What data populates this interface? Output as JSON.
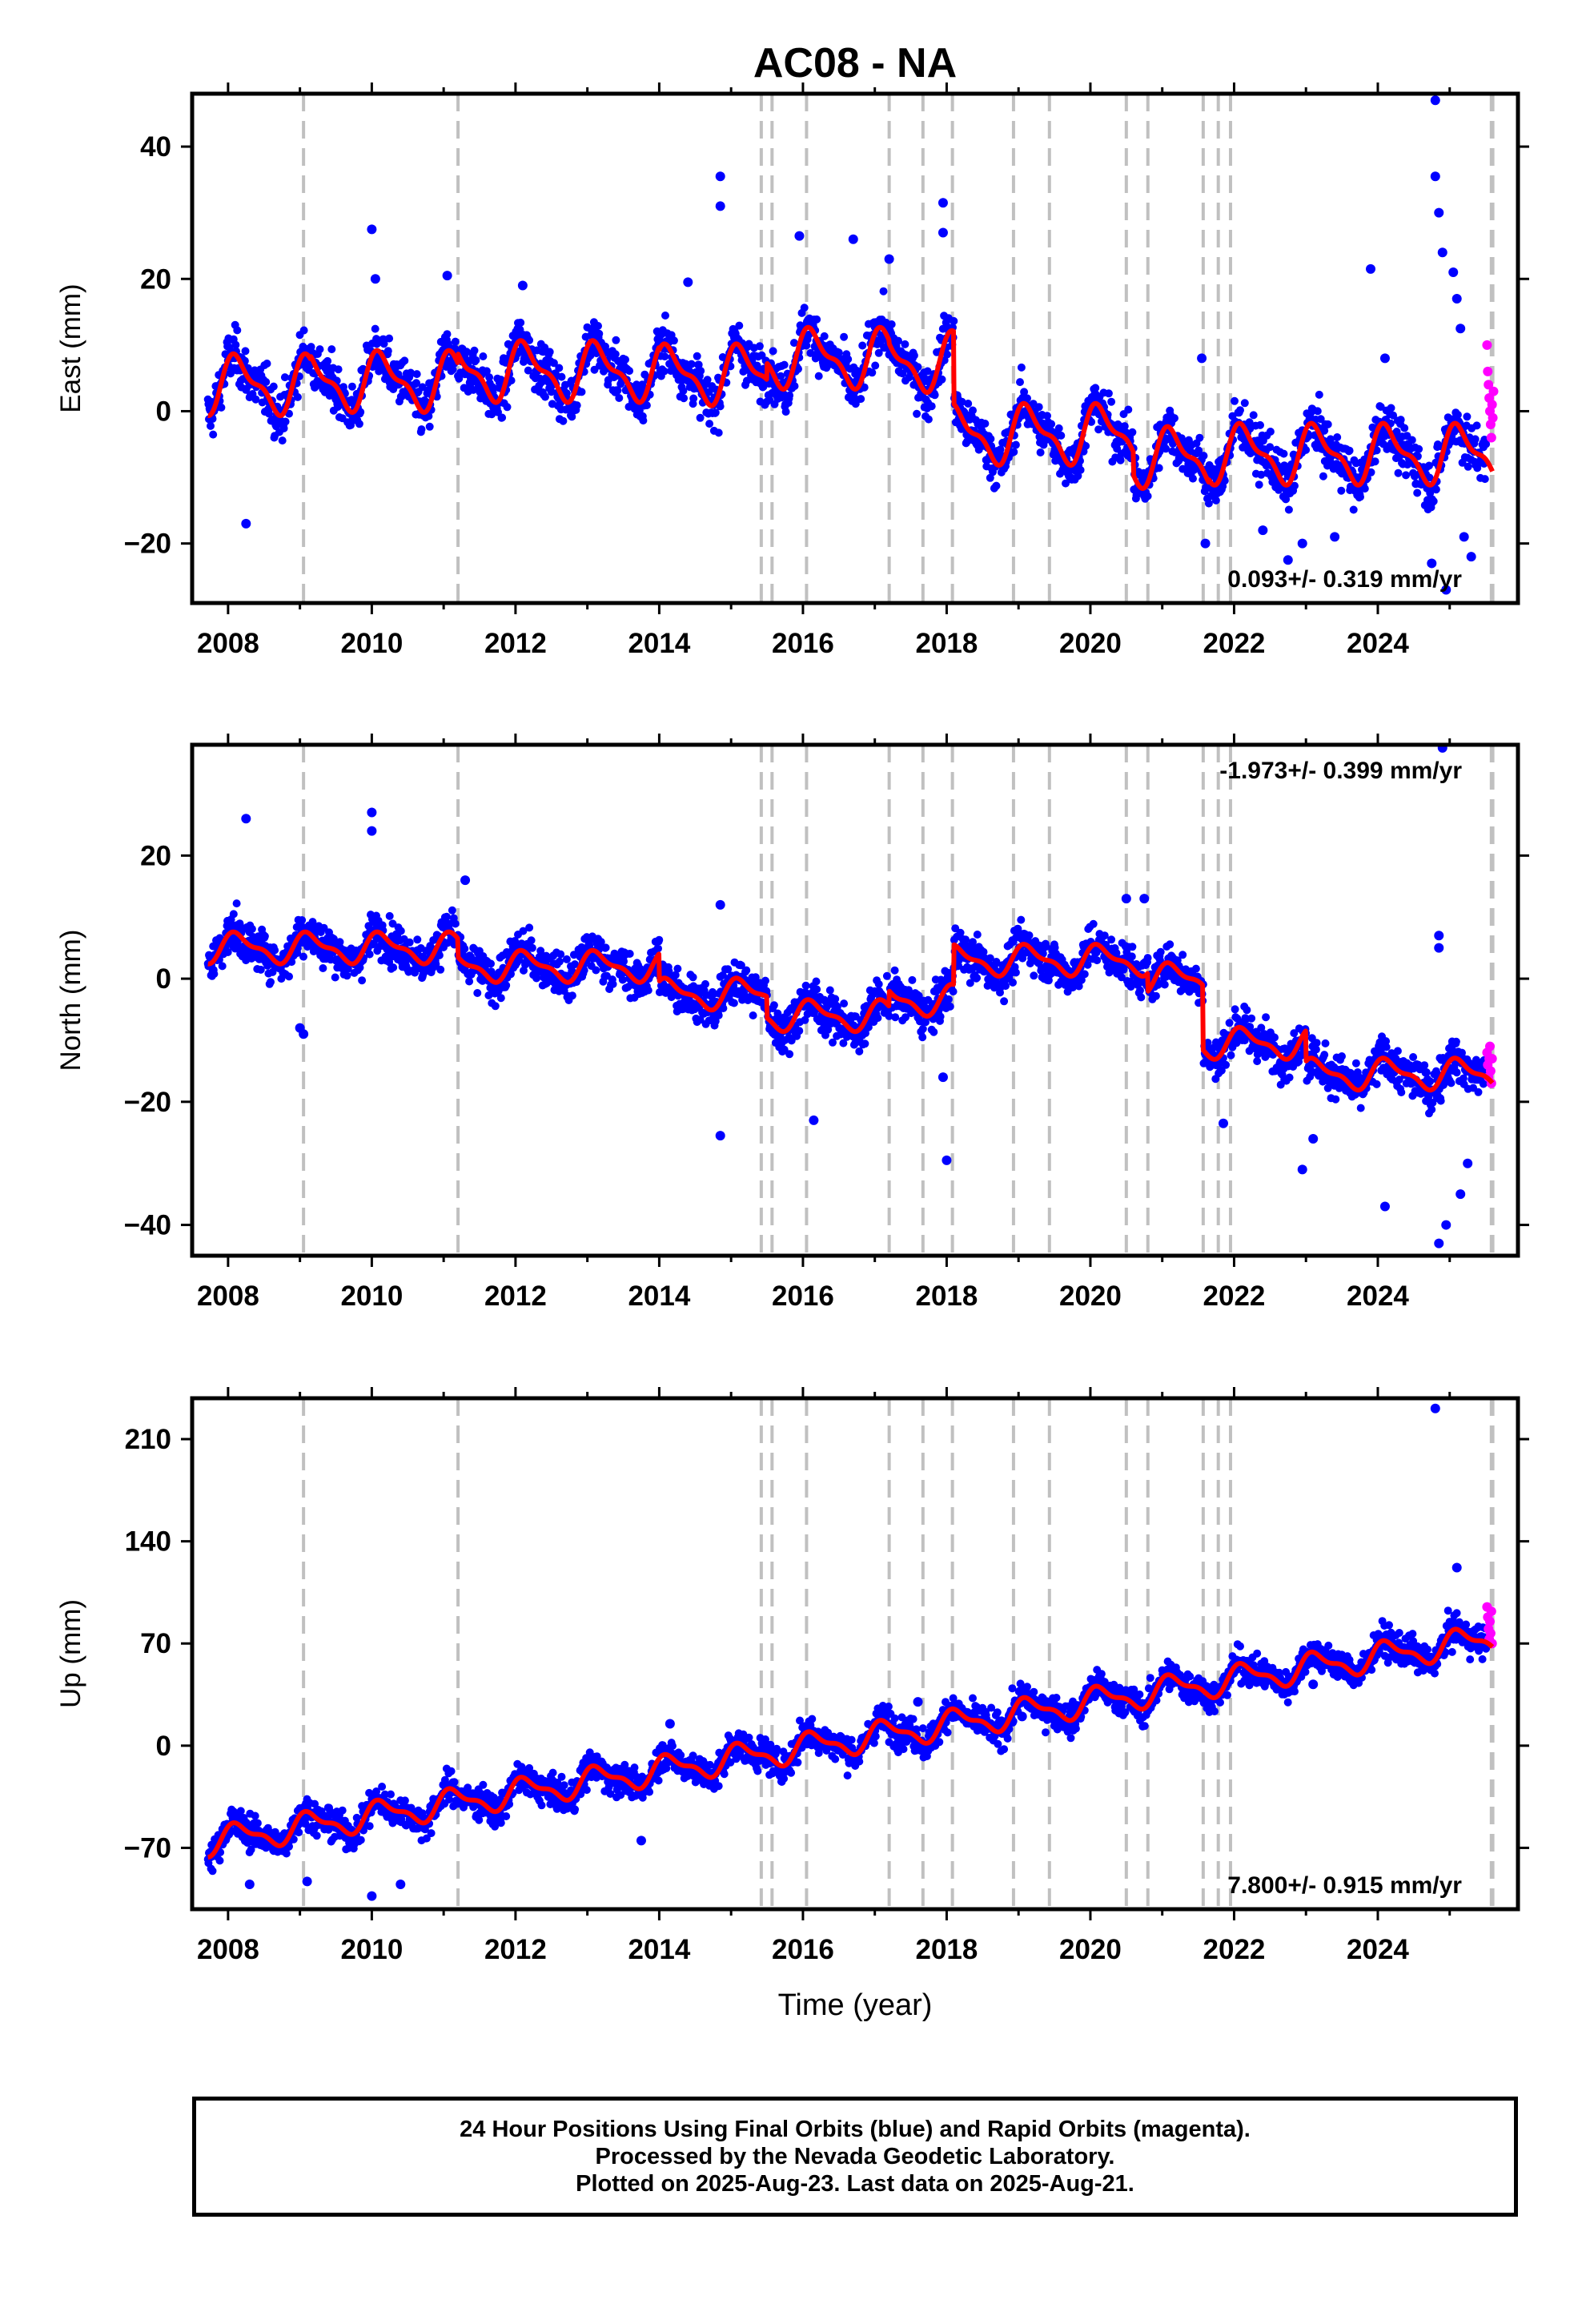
{
  "title": "AC08 - NA",
  "footer": {
    "line1": "24 Hour Positions Using Final Orbits (blue) and Rapid Orbits (magenta).",
    "line2": "Processed by the Nevada Geodetic Laboratory.",
    "line3": "Plotted on 2025-Aug-23. Last data on 2025-Aug-21."
  },
  "colors": {
    "final_orbits": "#0000ff",
    "rapid_orbits": "#ff00ff",
    "model_fit": "#ff0000",
    "equipment_change_lines": "#c0c0c0"
  },
  "chart_data": [
    {
      "type": "scatter",
      "panel": "east",
      "title": "AC08 - NA",
      "xlabel": "",
      "ylabel": "East (mm)",
      "xlim": [
        2007.5,
        2025.95
      ],
      "ylim": [
        -29,
        48
      ],
      "x_ticks": [
        2008,
        2010,
        2012,
        2014,
        2016,
        2018,
        2020,
        2022,
        2024
      ],
      "y_ticks": [
        -20,
        0,
        20,
        40
      ],
      "rate_label": "0.093+/- 0.319 mm/yr",
      "rate_label_position": "bottom-right",
      "seasonal_amplitude": 4.5,
      "noise_sd": 2.6,
      "segments": [
        {
          "start": 2007.72,
          "end": 2008.4,
          "offset": 4.0
        },
        {
          "start": 2008.4,
          "end": 2009.15,
          "offset": 4.0
        },
        {
          "start": 2009.15,
          "end": 2011.2,
          "offset": 4.5
        },
        {
          "start": 2011.2,
          "end": 2012.5,
          "offset": 6.0
        },
        {
          "start": 2012.5,
          "end": 2014.0,
          "offset": 6.0
        },
        {
          "start": 2014.0,
          "end": 2015.5,
          "offset": 5.5
        },
        {
          "start": 2015.5,
          "end": 2017.2,
          "offset": 8.0
        },
        {
          "start": 2017.2,
          "end": 2018.1,
          "offset": 7.5
        },
        {
          "start": 2018.1,
          "end": 2020.6,
          "offset": -3.5
        },
        {
          "start": 2020.6,
          "end": 2021.65,
          "offset": -7.0
        },
        {
          "start": 2021.65,
          "end": 2025.62,
          "offset": -6.5
        }
      ],
      "outliers": [
        [
          2008.25,
          -17
        ],
        [
          2010.0,
          27.5
        ],
        [
          2010.05,
          20
        ],
        [
          2011.05,
          20.5
        ],
        [
          2012.1,
          19
        ],
        [
          2014.4,
          19.5
        ],
        [
          2014.85,
          35.5
        ],
        [
          2014.85,
          31
        ],
        [
          2015.95,
          26.5
        ],
        [
          2016.7,
          26
        ],
        [
          2017.2,
          23
        ],
        [
          2017.95,
          31.5
        ],
        [
          2017.95,
          27
        ],
        [
          2021.55,
          8
        ],
        [
          2023.9,
          21.5
        ],
        [
          2024.1,
          8
        ],
        [
          2024.8,
          47
        ],
        [
          2024.8,
          35.5
        ],
        [
          2024.85,
          30
        ],
        [
          2024.9,
          24
        ],
        [
          2025.05,
          21
        ],
        [
          2025.15,
          12.5
        ],
        [
          2025.1,
          17
        ],
        [
          2024.75,
          -23
        ],
        [
          2024.95,
          -27
        ],
        [
          2025.2,
          -19
        ],
        [
          2025.3,
          -22
        ],
        [
          2022.95,
          -20
        ],
        [
          2023.4,
          -19
        ],
        [
          2022.4,
          -18
        ],
        [
          2021.6,
          -20
        ],
        [
          2022.75,
          -22.5
        ]
      ],
      "rapid_points": [
        [
          2025.52,
          10
        ],
        [
          2025.53,
          6
        ],
        [
          2025.54,
          4
        ],
        [
          2025.55,
          2
        ],
        [
          2025.56,
          0
        ],
        [
          2025.57,
          -2
        ],
        [
          2025.58,
          -4
        ],
        [
          2025.59,
          1
        ],
        [
          2025.6,
          -1
        ],
        [
          2025.61,
          3
        ]
      ],
      "equipment_changes": [
        2009.05,
        2011.2,
        2015.42,
        2015.57,
        2016.05,
        2017.2,
        2017.67,
        2018.08,
        2018.93,
        2019.43,
        2020.5,
        2020.8,
        2021.57,
        2021.78,
        2021.95,
        2025.58,
        2025.6
      ]
    },
    {
      "type": "scatter",
      "panel": "north",
      "xlabel": "",
      "ylabel": "North (mm)",
      "xlim": [
        2007.5,
        2025.95
      ],
      "ylim": [
        -45,
        38
      ],
      "x_ticks": [
        2008,
        2010,
        2012,
        2014,
        2016,
        2018,
        2020,
        2022,
        2024
      ],
      "y_ticks": [
        -40,
        -20,
        0,
        20
      ],
      "rate_label": "-1.973+/- 0.399 mm/yr",
      "rate_label_position": "top-right",
      "seasonal_amplitude": 2.5,
      "noise_sd": 2.4,
      "segments": [
        {
          "start": 2007.72,
          "end": 2009.05,
          "offset": 5.0
        },
        {
          "start": 2009.05,
          "end": 2011.2,
          "offset": 5.0
        },
        {
          "start": 2011.2,
          "end": 2014.0,
          "offset": 2.0
        },
        {
          "start": 2014.0,
          "end": 2015.5,
          "offset": -2.5
        },
        {
          "start": 2015.5,
          "end": 2017.2,
          "offset": -6.0
        },
        {
          "start": 2017.2,
          "end": 2018.1,
          "offset": -3.5
        },
        {
          "start": 2018.1,
          "end": 2020.8,
          "offset": 3.0
        },
        {
          "start": 2020.8,
          "end": 2021.57,
          "offset": 0.0
        },
        {
          "start": 2021.57,
          "end": 2023.0,
          "offset": -10.5
        },
        {
          "start": 2023.0,
          "end": 2025.62,
          "offset": -15.5
        }
      ],
      "outliers": [
        [
          2008.25,
          26
        ],
        [
          2010.0,
          27
        ],
        [
          2010.0,
          24
        ],
        [
          2014.85,
          12
        ],
        [
          2014.85,
          -25.5
        ],
        [
          2016.15,
          -23
        ],
        [
          2018.0,
          -29.5
        ],
        [
          2017.95,
          -16
        ],
        [
          2024.9,
          37.5
        ],
        [
          2024.85,
          7
        ],
        [
          2024.85,
          5
        ],
        [
          2024.85,
          -43
        ],
        [
          2024.95,
          -40
        ],
        [
          2024.1,
          -37
        ],
        [
          2022.95,
          -31
        ],
        [
          2023.1,
          -26
        ],
        [
          2021.85,
          -23.5
        ],
        [
          2009.05,
          -9
        ],
        [
          2009.0,
          -8
        ],
        [
          2011.3,
          16
        ],
        [
          2020.5,
          13
        ],
        [
          2020.75,
          13
        ],
        [
          2025.15,
          -35
        ],
        [
          2025.25,
          -30
        ]
      ],
      "rapid_points": [
        [
          2025.52,
          -12
        ],
        [
          2025.53,
          -14
        ],
        [
          2025.54,
          -16
        ],
        [
          2025.55,
          -13
        ],
        [
          2025.56,
          -11
        ],
        [
          2025.57,
          -15
        ],
        [
          2025.58,
          -17
        ],
        [
          2025.59,
          -13
        ]
      ],
      "equipment_changes": [
        2009.05,
        2011.2,
        2015.42,
        2015.57,
        2016.05,
        2017.2,
        2017.67,
        2018.08,
        2018.93,
        2019.43,
        2020.5,
        2020.8,
        2021.57,
        2021.78,
        2021.95,
        2025.58,
        2025.6
      ]
    },
    {
      "type": "scatter",
      "panel": "up",
      "xlabel": "Time (year)",
      "ylabel": "Up (mm)",
      "xlim": [
        2007.5,
        2025.95
      ],
      "ylim": [
        -112,
        238
      ],
      "x_ticks": [
        2008,
        2010,
        2012,
        2014,
        2016,
        2018,
        2020,
        2022,
        2024
      ],
      "y_ticks": [
        -70,
        0,
        70,
        140,
        210
      ],
      "rate_label": "7.800+/- 0.915 mm/yr",
      "rate_label_position": "bottom-right",
      "trend": {
        "start_year": 2007.72,
        "start_value": -66.0,
        "rate": 7.8
      },
      "seasonal_amplitude": 10.0,
      "noise_sd": 7.5,
      "outliers": [
        [
          2024.8,
          231
        ],
        [
          2025.1,
          122
        ],
        [
          2008.3,
          -95
        ],
        [
          2010.0,
          -103
        ],
        [
          2010.4,
          -95
        ],
        [
          2009.1,
          -93
        ],
        [
          2014.15,
          15
        ],
        [
          2013.75,
          -65
        ],
        [
          2017.6,
          30
        ],
        [
          2019.05,
          20
        ],
        [
          2023.1,
          42
        ]
      ],
      "rapid_points": [
        [
          2025.52,
          95
        ],
        [
          2025.53,
          88
        ],
        [
          2025.54,
          80
        ],
        [
          2025.55,
          73
        ],
        [
          2025.56,
          85
        ],
        [
          2025.57,
          77
        ],
        [
          2025.58,
          92
        ],
        [
          2025.59,
          70
        ]
      ],
      "equipment_changes": [
        2009.05,
        2011.2,
        2015.42,
        2015.57,
        2016.05,
        2017.2,
        2017.67,
        2018.08,
        2018.93,
        2019.43,
        2020.5,
        2020.8,
        2021.57,
        2021.78,
        2021.95,
        2025.58,
        2025.6
      ]
    }
  ]
}
